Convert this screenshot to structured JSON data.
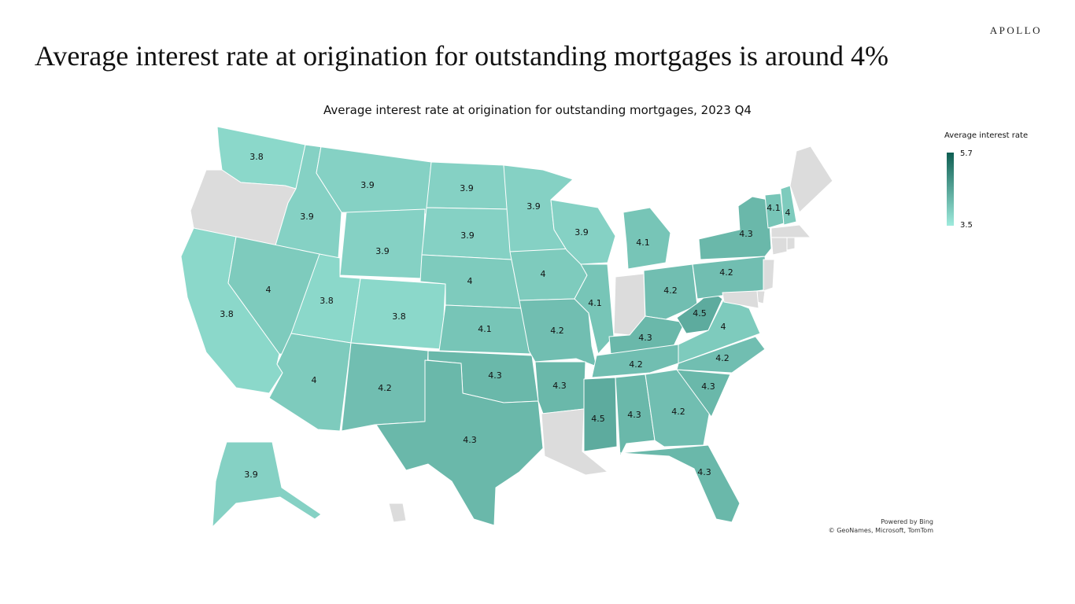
{
  "logo": "APOLLO",
  "headline": "Average interest rate at origination for outstanding mortgages is around 4%",
  "map": {
    "title": "Average interest rate at origination for outstanding mortgages, 2023 Q4",
    "legend": {
      "title": "Average interest rate",
      "min": 3.5,
      "max": 5.7,
      "min_label": "3.5",
      "max_label": "5.7",
      "color_min": "#9FEBDD",
      "color_max": "#0E5E52",
      "no_data_color": "#DCDCDC"
    },
    "attribution_line1": "Powered by Bing",
    "attribution_line2": "© GeoNames, Microsoft, TomTom",
    "states": [
      {
        "id": "WA",
        "value": 3.8,
        "label": "3.8"
      },
      {
        "id": "OR",
        "value": null,
        "label": ""
      },
      {
        "id": "CA",
        "value": 3.8,
        "label": "3.8"
      },
      {
        "id": "ID",
        "value": 3.9,
        "label": "3.9"
      },
      {
        "id": "NV",
        "value": 4.0,
        "label": "4"
      },
      {
        "id": "MT",
        "value": 3.9,
        "label": "3.9"
      },
      {
        "id": "WY",
        "value": 3.9,
        "label": "3.9"
      },
      {
        "id": "UT",
        "value": 3.8,
        "label": "3.8"
      },
      {
        "id": "CO",
        "value": 3.8,
        "label": "3.8"
      },
      {
        "id": "AZ",
        "value": 4.0,
        "label": "4"
      },
      {
        "id": "NM",
        "value": 4.2,
        "label": "4.2"
      },
      {
        "id": "ND",
        "value": 3.9,
        "label": "3.9"
      },
      {
        "id": "SD",
        "value": 3.9,
        "label": "3.9"
      },
      {
        "id": "NE",
        "value": 4.0,
        "label": "4"
      },
      {
        "id": "KS",
        "value": 4.1,
        "label": "4.1"
      },
      {
        "id": "OK",
        "value": 4.3,
        "label": "4.3"
      },
      {
        "id": "TX",
        "value": 4.3,
        "label": "4.3"
      },
      {
        "id": "MN",
        "value": 3.9,
        "label": "3.9"
      },
      {
        "id": "IA",
        "value": 4.0,
        "label": "4"
      },
      {
        "id": "MO",
        "value": 4.2,
        "label": "4.2"
      },
      {
        "id": "AR",
        "value": 4.3,
        "label": "4.3"
      },
      {
        "id": "LA",
        "value": null,
        "label": ""
      },
      {
        "id": "WI",
        "value": 3.9,
        "label": "3.9"
      },
      {
        "id": "IL",
        "value": 4.1,
        "label": "4.1"
      },
      {
        "id": "MI",
        "value": 4.1,
        "label": "4.1"
      },
      {
        "id": "IN",
        "value": null,
        "label": ""
      },
      {
        "id": "OH",
        "value": 4.2,
        "label": "4.2"
      },
      {
        "id": "KY",
        "value": 4.3,
        "label": "4.3"
      },
      {
        "id": "TN",
        "value": 4.2,
        "label": "4.2"
      },
      {
        "id": "MS",
        "value": 4.5,
        "label": "4.5"
      },
      {
        "id": "AL",
        "value": 4.3,
        "label": "4.3"
      },
      {
        "id": "GA",
        "value": 4.2,
        "label": "4.2"
      },
      {
        "id": "FL",
        "value": 4.3,
        "label": "4.3"
      },
      {
        "id": "SC",
        "value": 4.3,
        "label": "4.3"
      },
      {
        "id": "NC",
        "value": 4.2,
        "label": "4.2"
      },
      {
        "id": "VA",
        "value": 4.0,
        "label": "4"
      },
      {
        "id": "WV",
        "value": 4.5,
        "label": "4.5"
      },
      {
        "id": "PA",
        "value": 4.2,
        "label": "4.2"
      },
      {
        "id": "NY",
        "value": 4.3,
        "label": "4.3"
      },
      {
        "id": "VT",
        "value": 4.1,
        "label": "4.1"
      },
      {
        "id": "NH",
        "value": 4.0,
        "label": "4"
      },
      {
        "id": "ME",
        "value": null,
        "label": ""
      },
      {
        "id": "MA",
        "value": null,
        "label": ""
      },
      {
        "id": "CT",
        "value": null,
        "label": ""
      },
      {
        "id": "RI",
        "value": null,
        "label": ""
      },
      {
        "id": "NJ",
        "value": null,
        "label": ""
      },
      {
        "id": "DE",
        "value": null,
        "label": ""
      },
      {
        "id": "MD",
        "value": null,
        "label": ""
      },
      {
        "id": "AK",
        "value": 3.9,
        "label": "3.9"
      },
      {
        "id": "HI",
        "value": null,
        "label": ""
      }
    ]
  }
}
